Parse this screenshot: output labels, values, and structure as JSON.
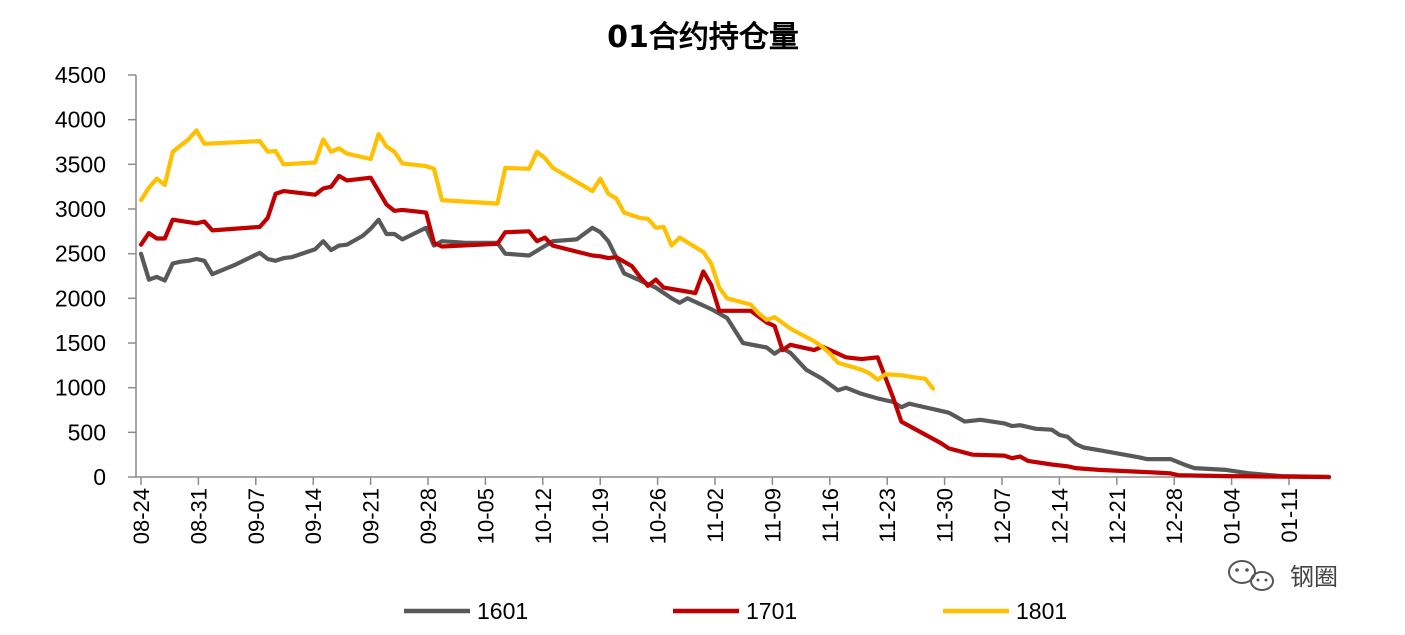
{
  "chart_data": {
    "type": "line",
    "title": "01合约持仓量",
    "xlabel": "",
    "ylabel": "",
    "ylim": [
      0,
      4500
    ],
    "yticks": [
      0,
      500,
      1000,
      1500,
      2000,
      2500,
      3000,
      3500,
      4000,
      4500
    ],
    "categories": [
      "08-24",
      "08-31",
      "09-07",
      "09-14",
      "09-21",
      "09-28",
      "10-05",
      "10-12",
      "10-19",
      "10-26",
      "11-02",
      "11-09",
      "11-16",
      "11-23",
      "11-30",
      "12-07",
      "12-14",
      "12-21",
      "12-28",
      "01-04",
      "01-11"
    ],
    "grid": false,
    "legend_position": "bottom",
    "series": [
      {
        "name": "1601",
        "color": "#595959",
        "points": [
          [
            0,
            2500
          ],
          [
            1,
            2210
          ],
          [
            2,
            2240
          ],
          [
            3,
            2200
          ],
          [
            4,
            2390
          ],
          [
            5,
            2410
          ],
          [
            6,
            2420
          ],
          [
            7,
            2440
          ],
          [
            8,
            2420
          ],
          [
            9,
            2270
          ],
          [
            12,
            2380
          ],
          [
            15,
            2510
          ],
          [
            16,
            2440
          ],
          [
            17,
            2420
          ],
          [
            18,
            2450
          ],
          [
            19,
            2460
          ],
          [
            22,
            2550
          ],
          [
            23,
            2640
          ],
          [
            24,
            2540
          ],
          [
            25,
            2590
          ],
          [
            26,
            2600
          ],
          [
            28,
            2700
          ],
          [
            29,
            2780
          ],
          [
            30,
            2880
          ],
          [
            31,
            2720
          ],
          [
            32,
            2720
          ],
          [
            33,
            2660
          ],
          [
            36,
            2790
          ],
          [
            37,
            2590
          ],
          [
            38,
            2640
          ],
          [
            41,
            2620
          ],
          [
            44,
            2620
          ],
          [
            45,
            2620
          ],
          [
            46,
            2500
          ],
          [
            49,
            2480
          ],
          [
            52,
            2640
          ],
          [
            55,
            2660
          ],
          [
            57,
            2790
          ],
          [
            58,
            2740
          ],
          [
            59,
            2640
          ],
          [
            61,
            2280
          ],
          [
            63,
            2200
          ],
          [
            65,
            2120
          ],
          [
            67,
            2000
          ],
          [
            68,
            1950
          ],
          [
            69,
            2000
          ],
          [
            72,
            1880
          ],
          [
            74,
            1780
          ],
          [
            76,
            1500
          ],
          [
            79,
            1450
          ],
          [
            80,
            1380
          ],
          [
            81,
            1440
          ],
          [
            82,
            1390
          ],
          [
            84,
            1200
          ],
          [
            86,
            1100
          ],
          [
            88,
            970
          ],
          [
            89,
            1000
          ],
          [
            91,
            930
          ],
          [
            93,
            880
          ],
          [
            95,
            840
          ],
          [
            96,
            780
          ],
          [
            97,
            820
          ],
          [
            98,
            800
          ],
          [
            100,
            760
          ],
          [
            102,
            720
          ],
          [
            104,
            620
          ],
          [
            106,
            640
          ],
          [
            109,
            600
          ],
          [
            110,
            570
          ],
          [
            111,
            580
          ],
          [
            113,
            540
          ],
          [
            115,
            530
          ],
          [
            116,
            470
          ],
          [
            117,
            450
          ],
          [
            118,
            370
          ],
          [
            119,
            330
          ],
          [
            121,
            300
          ],
          [
            126,
            220
          ],
          [
            127,
            200
          ],
          [
            130,
            200
          ],
          [
            132,
            130
          ],
          [
            133,
            100
          ],
          [
            137,
            80
          ],
          [
            140,
            40
          ],
          [
            144,
            10
          ],
          [
            150,
            0
          ]
        ]
      },
      {
        "name": "1701",
        "color": "#C00000",
        "points": [
          [
            0,
            2600
          ],
          [
            1,
            2730
          ],
          [
            2,
            2670
          ],
          [
            3,
            2670
          ],
          [
            4,
            2880
          ],
          [
            7,
            2840
          ],
          [
            8,
            2860
          ],
          [
            9,
            2760
          ],
          [
            15,
            2800
          ],
          [
            16,
            2900
          ],
          [
            17,
            3170
          ],
          [
            18,
            3200
          ],
          [
            22,
            3160
          ],
          [
            23,
            3230
          ],
          [
            24,
            3250
          ],
          [
            25,
            3370
          ],
          [
            26,
            3320
          ],
          [
            29,
            3350
          ],
          [
            30,
            3200
          ],
          [
            31,
            3050
          ],
          [
            32,
            2980
          ],
          [
            33,
            2990
          ],
          [
            36,
            2960
          ],
          [
            37,
            2620
          ],
          [
            38,
            2580
          ],
          [
            45,
            2610
          ],
          [
            46,
            2740
          ],
          [
            49,
            2750
          ],
          [
            50,
            2640
          ],
          [
            51,
            2680
          ],
          [
            52,
            2590
          ],
          [
            57,
            2480
          ],
          [
            58,
            2470
          ],
          [
            59,
            2450
          ],
          [
            60,
            2460
          ],
          [
            62,
            2360
          ],
          [
            63,
            2240
          ],
          [
            64,
            2140
          ],
          [
            65,
            2210
          ],
          [
            66,
            2120
          ],
          [
            70,
            2060
          ],
          [
            71,
            2300
          ],
          [
            72,
            2150
          ],
          [
            73,
            1860
          ],
          [
            77,
            1860
          ],
          [
            79,
            1730
          ],
          [
            80,
            1690
          ],
          [
            81,
            1420
          ],
          [
            82,
            1480
          ],
          [
            85,
            1420
          ],
          [
            86,
            1460
          ],
          [
            87,
            1420
          ],
          [
            89,
            1340
          ],
          [
            91,
            1320
          ],
          [
            93,
            1340
          ],
          [
            94,
            1110
          ],
          [
            95,
            880
          ],
          [
            96,
            620
          ],
          [
            101,
            380
          ],
          [
            102,
            320
          ],
          [
            105,
            250
          ],
          [
            109,
            240
          ],
          [
            110,
            210
          ],
          [
            111,
            230
          ],
          [
            112,
            180
          ],
          [
            115,
            140
          ],
          [
            117,
            120
          ],
          [
            118,
            100
          ],
          [
            121,
            80
          ],
          [
            128,
            50
          ],
          [
            130,
            40
          ],
          [
            131,
            20
          ],
          [
            137,
            10
          ],
          [
            150,
            0
          ]
        ]
      },
      {
        "name": "1801",
        "color": "#FFC000",
        "points": [
          [
            0,
            3100
          ],
          [
            1,
            3240
          ],
          [
            2,
            3340
          ],
          [
            3,
            3270
          ],
          [
            4,
            3640
          ],
          [
            6,
            3780
          ],
          [
            7,
            3880
          ],
          [
            8,
            3730
          ],
          [
            15,
            3760
          ],
          [
            16,
            3640
          ],
          [
            17,
            3650
          ],
          [
            18,
            3500
          ],
          [
            22,
            3520
          ],
          [
            23,
            3780
          ],
          [
            24,
            3640
          ],
          [
            25,
            3680
          ],
          [
            26,
            3620
          ],
          [
            29,
            3560
          ],
          [
            30,
            3840
          ],
          [
            31,
            3700
          ],
          [
            32,
            3640
          ],
          [
            33,
            3510
          ],
          [
            36,
            3480
          ],
          [
            37,
            3450
          ],
          [
            38,
            3100
          ],
          [
            45,
            3060
          ],
          [
            46,
            3460
          ],
          [
            49,
            3450
          ],
          [
            50,
            3640
          ],
          [
            51,
            3570
          ],
          [
            52,
            3460
          ],
          [
            57,
            3200
          ],
          [
            58,
            3340
          ],
          [
            59,
            3170
          ],
          [
            60,
            3120
          ],
          [
            61,
            2960
          ],
          [
            63,
            2900
          ],
          [
            64,
            2890
          ],
          [
            65,
            2790
          ],
          [
            66,
            2800
          ],
          [
            67,
            2590
          ],
          [
            68,
            2680
          ],
          [
            71,
            2520
          ],
          [
            72,
            2390
          ],
          [
            73,
            2120
          ],
          [
            74,
            2000
          ],
          [
            77,
            1930
          ],
          [
            78,
            1830
          ],
          [
            79,
            1760
          ],
          [
            80,
            1790
          ],
          [
            82,
            1660
          ],
          [
            85,
            1520
          ],
          [
            86,
            1460
          ],
          [
            87,
            1380
          ],
          [
            88,
            1280
          ],
          [
            91,
            1200
          ],
          [
            92,
            1160
          ],
          [
            93,
            1090
          ],
          [
            94,
            1150
          ],
          [
            96,
            1140
          ],
          [
            98,
            1110
          ],
          [
            99,
            1100
          ],
          [
            100,
            990
          ]
        ]
      }
    ]
  },
  "watermark": {
    "text": "钢圈",
    "icon": "wechat-icon"
  }
}
